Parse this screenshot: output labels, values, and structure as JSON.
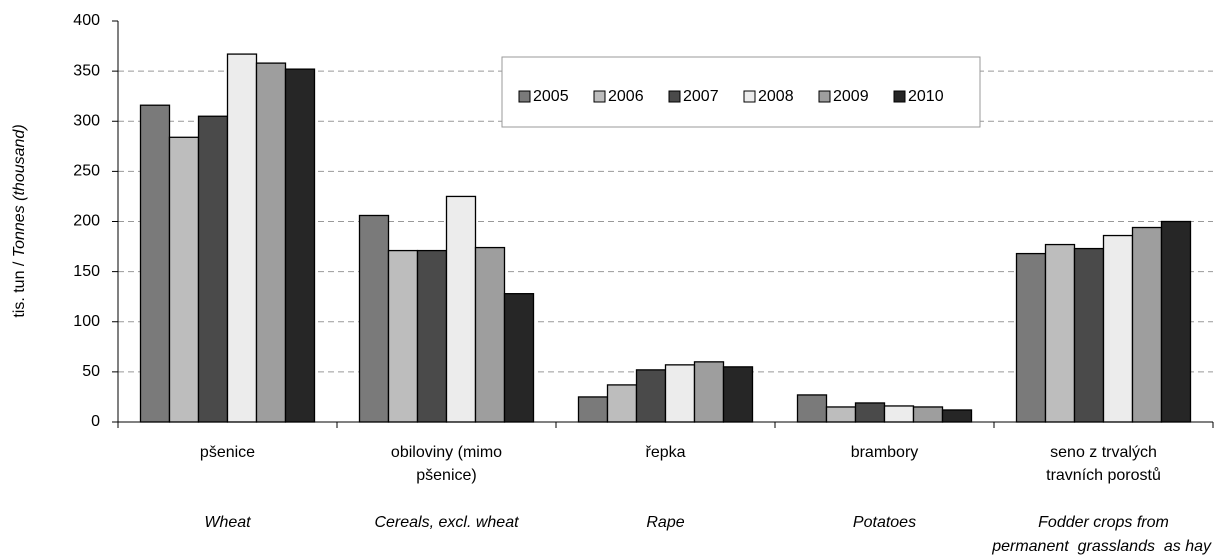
{
  "chart_data": {
    "type": "bar",
    "y_label": "tis. tun / ",
    "y_label_en": "Tonnes (thousand)",
    "categories": [
      [
        "pšenice"
      ],
      [
        "obiloviny (mimo",
        "pšenice)"
      ],
      [
        "řepka"
      ],
      [
        "brambory"
      ],
      [
        "seno z trvalých",
        "travních porostů"
      ]
    ],
    "categories_en": [
      [
        "Wheat"
      ],
      [
        "Cereals, excl. wheat"
      ],
      [
        "Rape"
      ],
      [
        "Potatoes"
      ],
      [
        "Fodder crops from",
        "permanent  grasslands  as hay"
      ]
    ],
    "series": [
      {
        "name": "2005",
        "color": "#7a7a7a",
        "values": [
          316,
          206,
          25,
          27,
          168
        ]
      },
      {
        "name": "2006",
        "color": "#bdbdbd",
        "values": [
          284,
          171,
          37,
          15,
          177
        ]
      },
      {
        "name": "2007",
        "color": "#4a4a4a",
        "values": [
          305,
          171,
          52,
          19,
          173
        ]
      },
      {
        "name": "2008",
        "color": "#ececec",
        "values": [
          367,
          225,
          57,
          16,
          186
        ]
      },
      {
        "name": "2009",
        "color": "#9e9e9e",
        "values": [
          358,
          174,
          60,
          15,
          194
        ]
      },
      {
        "name": "2010",
        "color": "#262626",
        "values": [
          352,
          128,
          55,
          12,
          200
        ]
      }
    ],
    "ylim": [
      0,
      400
    ],
    "yticks": [
      0,
      50,
      100,
      150,
      200,
      250,
      300,
      350,
      400
    ],
    "grid": true
  }
}
